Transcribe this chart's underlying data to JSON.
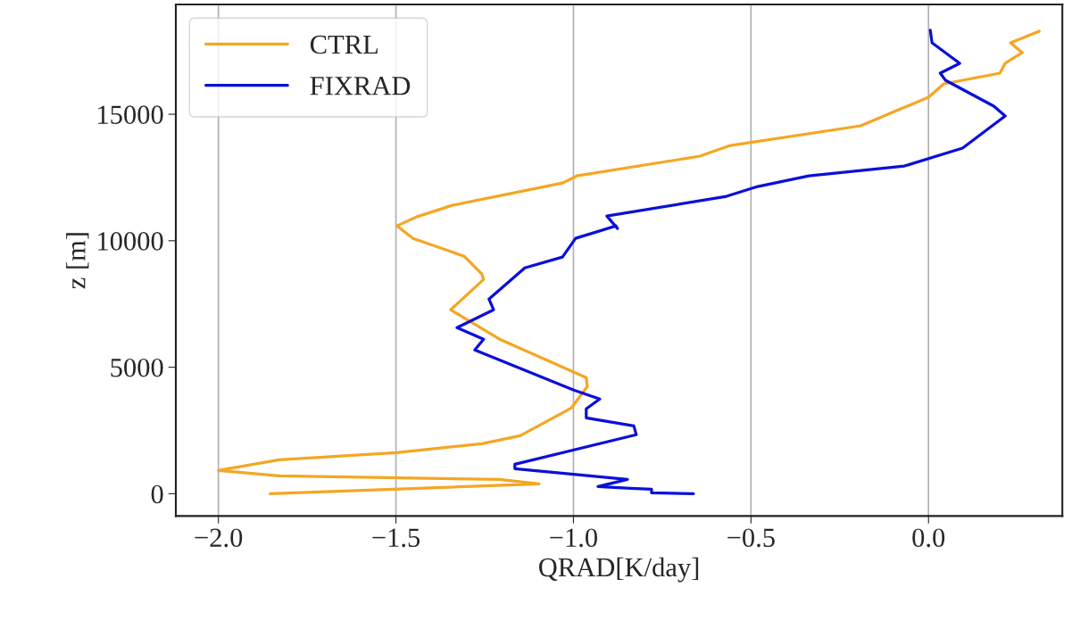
{
  "chart_data": {
    "type": "line",
    "xlabel": "QRAD[K/day]",
    "ylabel": "z [m]",
    "xlim": [
      -2.12,
      0.377
    ],
    "ylim": [
      -880,
      19340
    ],
    "xticks": [
      {
        "value": -2.0,
        "label": "−2.0"
      },
      {
        "value": -1.5,
        "label": "−1.5"
      },
      {
        "value": -1.0,
        "label": "−1.0"
      },
      {
        "value": -0.5,
        "label": "−0.5"
      },
      {
        "value": 0.0,
        "label": "0.0"
      }
    ],
    "yticks": [
      0,
      5000,
      10000,
      15000
    ],
    "grid": "x",
    "legend": "top left",
    "line_style": "solid",
    "marker": "none",
    "series": [
      {
        "name": "CTRL",
        "color": "#f5a623",
        "x": [
          -1.854,
          -1.097,
          -1.208,
          -1.829,
          -2.0,
          -1.829,
          -1.499,
          -1.258,
          -1.15,
          -1.006,
          -0.961,
          -0.964,
          -1.208,
          -1.346,
          -1.253,
          -1.258,
          -1.308,
          -1.452,
          -1.497,
          -1.442,
          -1.341,
          -1.031,
          -0.999,
          -0.991,
          -0.644,
          -0.558,
          -0.191,
          0.0,
          0.043,
          0.201,
          0.216,
          0.264,
          0.231,
          0.312
        ],
        "values": [
          0,
          388,
          565,
          706,
          918,
          1341,
          1624,
          1977,
          2294,
          3389,
          4236,
          4589,
          6107,
          7271,
          8472,
          8683,
          9389,
          10095,
          10589,
          10942,
          11401,
          12284,
          12496,
          12566,
          13343,
          13766,
          14543,
          15673,
          16202,
          16625,
          17014,
          17437,
          17826,
          18284
        ]
      },
      {
        "name": "FIXRAD",
        "color": "#0a10d8",
        "x": [
          -0.662,
          -0.78,
          -0.78,
          -0.838,
          -0.931,
          -0.848,
          -1.165,
          -1.165,
          -0.823,
          -0.83,
          -0.964,
          -0.964,
          -0.926,
          -0.999,
          -1.278,
          -1.253,
          -1.328,
          -1.225,
          -1.238,
          -1.137,
          -1.031,
          -0.994,
          -0.88,
          -0.876,
          -0.906,
          -0.569,
          -0.481,
          -0.337,
          -0.068,
          0.096,
          0.216,
          0.184,
          0.048,
          0.033,
          0.088,
          0.01,
          0.005
        ],
        "values": [
          0,
          35,
          176,
          212,
          282,
          565,
          988,
          1165,
          2330,
          2683,
          3000,
          3353,
          3742,
          4095,
          5683,
          6107,
          6566,
          7271,
          7695,
          8930,
          9354,
          10095,
          10589,
          10483,
          10977,
          11754,
          12143,
          12566,
          12954,
          13660,
          14931,
          15319,
          16343,
          16625,
          17014,
          17826,
          18320
        ]
      }
    ]
  }
}
